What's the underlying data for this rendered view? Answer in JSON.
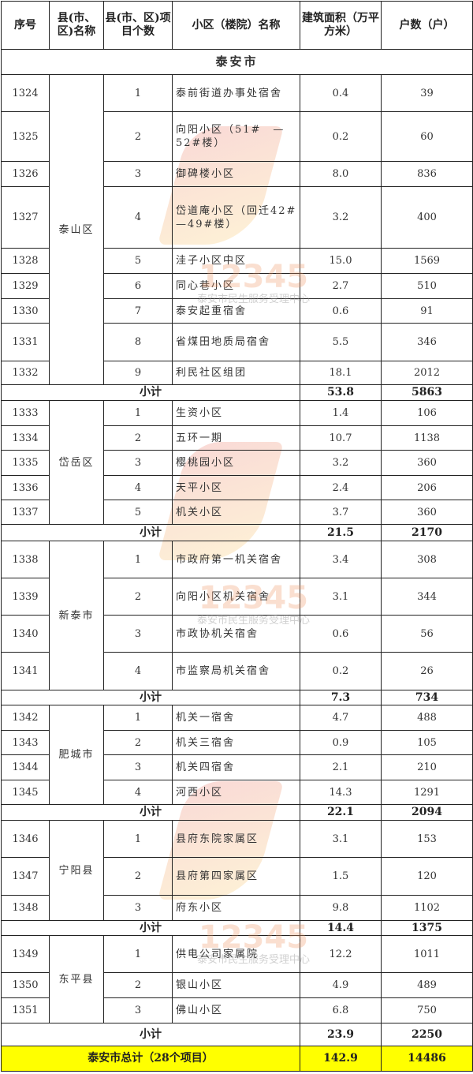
{
  "headers": [
    "序号",
    "县(市、区)名称",
    "县(市、区)项目个数",
    "小区（楼院）名称",
    "建筑面积（万平方米）",
    "户数（户）"
  ],
  "city": "泰安市",
  "subtotal_label": "小计",
  "groups": [
    {
      "county": "泰山区",
      "rows": [
        [
          "1324",
          "1",
          "泰前街道办事处宿舍",
          "0.4",
          "39"
        ],
        [
          "1325",
          "2",
          "向阳小区（51#　—52#楼）",
          "0.2",
          "60"
        ],
        [
          "1326",
          "3",
          "御碑楼小区",
          "8.0",
          "836"
        ],
        [
          "1327",
          "4",
          "岱道庵小区（回迁42#—49#楼）",
          "3.2",
          "400"
        ],
        [
          "1328",
          "5",
          "洼子小区中区",
          "15.0",
          "1569"
        ],
        [
          "1329",
          "6",
          "同心巷小区",
          "2.7",
          "510"
        ],
        [
          "1330",
          "7",
          "泰安起重宿舍",
          "0.6",
          "91"
        ],
        [
          "1331",
          "8",
          "省煤田地质局宿舍",
          "5.5",
          "346"
        ],
        [
          "1332",
          "9",
          "利民社区组团",
          "18.1",
          "2012"
        ]
      ],
      "subtotal": [
        "53.8",
        "5863"
      ]
    },
    {
      "county": "岱岳区",
      "rows": [
        [
          "1333",
          "1",
          "生资小区",
          "1.4",
          "106"
        ],
        [
          "1334",
          "2",
          "五环一期",
          "10.7",
          "1138"
        ],
        [
          "1335",
          "3",
          "樱桃园小区",
          "3.2",
          "360"
        ],
        [
          "1336",
          "4",
          "天平小区",
          "2.4",
          "206"
        ],
        [
          "1337",
          "5",
          "机关小区",
          "3.7",
          "360"
        ]
      ],
      "subtotal": [
        "21.5",
        "2170"
      ]
    },
    {
      "county": "新泰市",
      "rows": [
        [
          "1338",
          "1",
          "市政府第一机关宿舍",
          "3.4",
          "308"
        ],
        [
          "1339",
          "2",
          "向阳小区机关宿舍",
          "3.1",
          "344"
        ],
        [
          "1340",
          "3",
          "市政协机关宿舍",
          "0.6",
          "56"
        ],
        [
          "1341",
          "4",
          "市监察局机关宿舍",
          "0.2",
          "26"
        ]
      ],
      "subtotal": [
        "7.3",
        "734"
      ]
    },
    {
      "county": "肥城市",
      "rows": [
        [
          "1342",
          "1",
          "机关一宿舍",
          "4.7",
          "488"
        ],
        [
          "1343",
          "2",
          "机关三宿舍",
          "0.9",
          "105"
        ],
        [
          "1344",
          "3",
          "机关四宿舍",
          "2.1",
          "210"
        ],
        [
          "1345",
          "4",
          "河西小区",
          "14.3",
          "1291"
        ]
      ],
      "subtotal": [
        "22.1",
        "2094"
      ]
    },
    {
      "county": "宁阳县",
      "rows": [
        [
          "1346",
          "1",
          "县府东院家属区",
          "3.1",
          "153"
        ],
        [
          "1347",
          "2",
          "县府第四家属区",
          "1.5",
          "120"
        ],
        [
          "1348",
          "3",
          "府东小区",
          "9.8",
          "1102"
        ]
      ],
      "subtotal": [
        "14.4",
        "1375"
      ]
    },
    {
      "county": "东平县",
      "rows": [
        [
          "1349",
          "1",
          "供电公司家属院",
          "12.2",
          "1011"
        ],
        [
          "1350",
          "2",
          "银山小区",
          "4.9",
          "489"
        ],
        [
          "1351",
          "3",
          "佛山小区",
          "6.8",
          "750"
        ]
      ],
      "subtotal": [
        "23.9",
        "2250"
      ]
    }
  ],
  "total": {
    "label": "泰安市总计（28个项目）",
    "area": "142.9",
    "households": "14486"
  },
  "total_color": "#ffff00",
  "watermark": {
    "number": "12345",
    "text": "泰安市民生服务受理中心"
  }
}
